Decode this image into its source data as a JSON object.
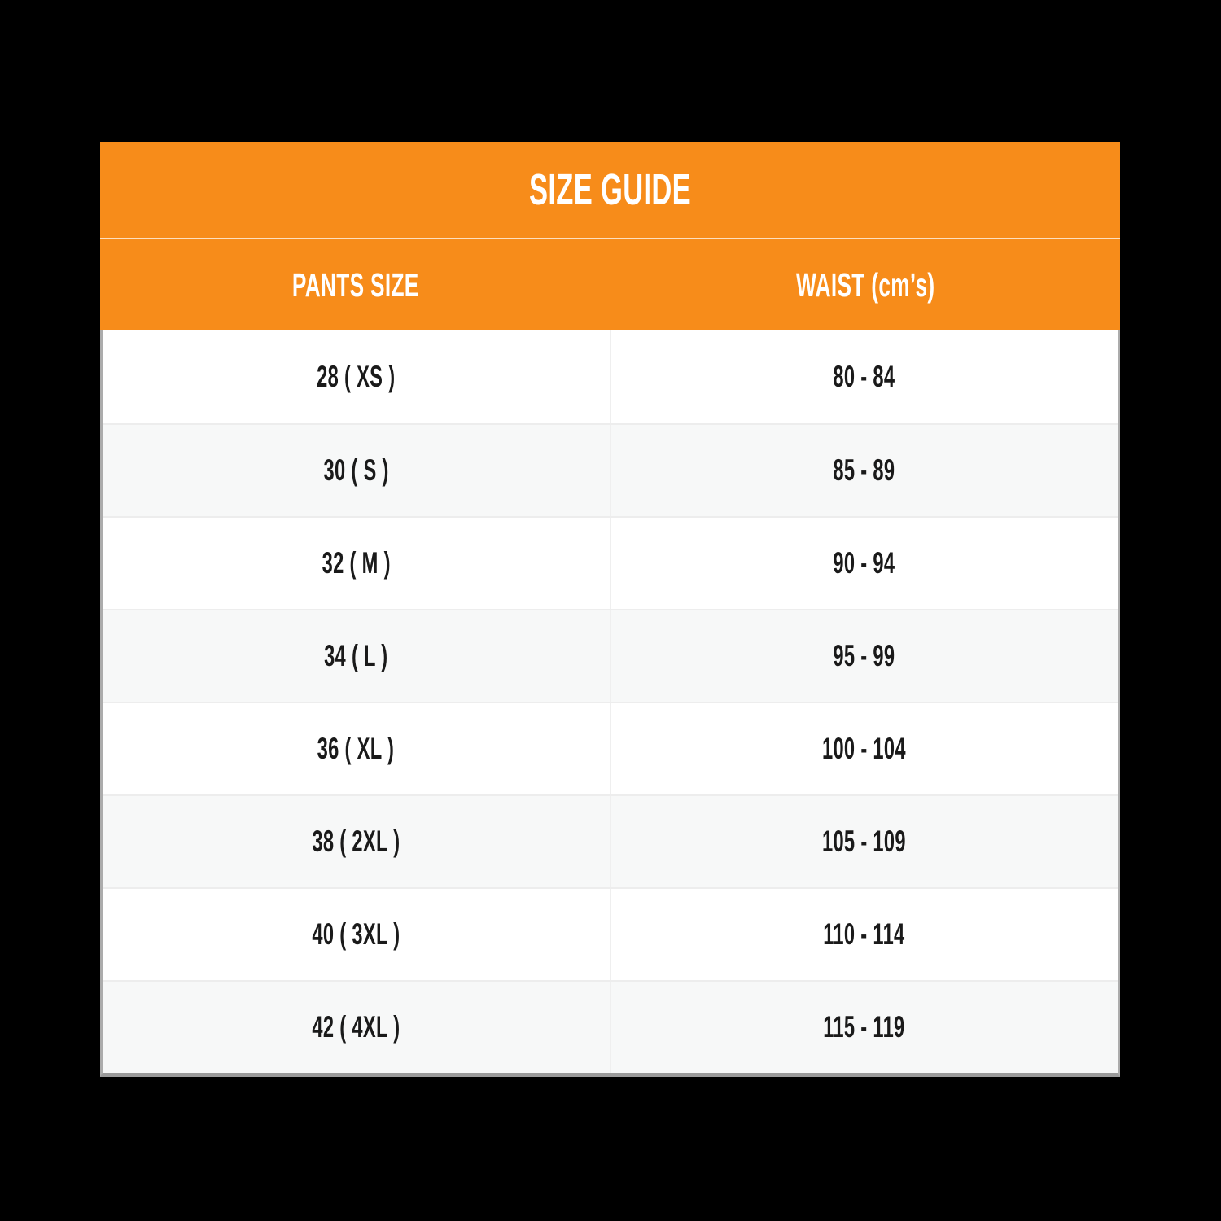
{
  "page": {
    "background_color": "#000000"
  },
  "table": {
    "title": "SIZE GUIDE",
    "colors": {
      "accent_orange": "#F78C1A",
      "header_text": "#FFFFFF",
      "row_text": "#1A1A1A",
      "row_alt_background": "#F7F8F8",
      "outer_border": "#ACACAC"
    },
    "columns": [
      {
        "label": "PANTS SIZE"
      },
      {
        "label": "WAIST (cm’s)"
      }
    ],
    "rows": [
      {
        "pants_size": "28 ( XS )",
        "waist": "80 - 84"
      },
      {
        "pants_size": "30 ( S )",
        "waist": "85 - 89"
      },
      {
        "pants_size": "32 ( M )",
        "waist": "90 - 94"
      },
      {
        "pants_size": "34 ( L )",
        "waist": "95 - 99"
      },
      {
        "pants_size": "36 ( XL )",
        "waist": "100 - 104"
      },
      {
        "pants_size": "38 ( 2XL )",
        "waist": "105 - 109"
      },
      {
        "pants_size": "40 ( 3XL )",
        "waist": "110 - 114"
      },
      {
        "pants_size": "42 ( 4XL )",
        "waist": "115 - 119"
      }
    ]
  }
}
